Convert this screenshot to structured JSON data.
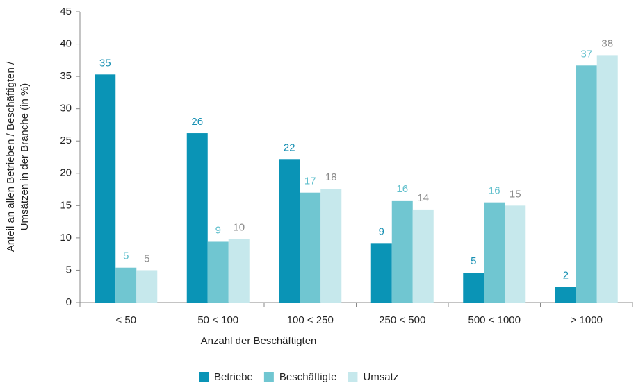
{
  "chart_data": {
    "type": "bar",
    "categories": [
      "< 50",
      "50 < 100",
      "100 < 250",
      "250 < 500",
      "500 < 1000",
      "> 1000"
    ],
    "series": [
      {
        "name": "Betriebe",
        "color": "#0a94b6",
        "label_color": "#1790b3",
        "values": [
          35.3,
          26.2,
          22.2,
          9.2,
          4.6,
          2.4
        ],
        "value_labels": [
          "35",
          "26",
          "22",
          "9",
          "5",
          "2"
        ]
      },
      {
        "name": "Beschäftigte",
        "color": "#70c6d1",
        "label_color": "#5fbfcc",
        "values": [
          5.4,
          9.4,
          17.0,
          15.8,
          15.5,
          36.7
        ],
        "value_labels": [
          "5",
          "9",
          "17",
          "16",
          "16",
          "37"
        ]
      },
      {
        "name": "Umsatz",
        "color": "#c6e8ec",
        "label_color": "#8a8a8a",
        "values": [
          5.0,
          9.8,
          17.6,
          14.4,
          15.0,
          38.3
        ],
        "value_labels": [
          "5",
          "10",
          "18",
          "14",
          "15",
          "38"
        ]
      }
    ],
    "xlabel": "Anzahl der Beschäftigten",
    "ylabel": [
      "Anteil an allen Betrieben / Beschäftigten /",
      "Umsätzen in der Branche (in %)"
    ],
    "ylim": [
      0,
      45
    ],
    "yticks": [
      0,
      5,
      10,
      15,
      20,
      25,
      30,
      35,
      40,
      45
    ],
    "grid": false,
    "legend": "bottom"
  }
}
